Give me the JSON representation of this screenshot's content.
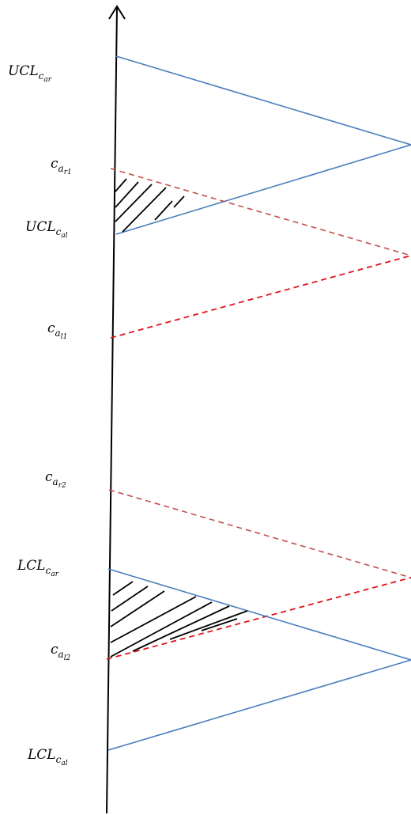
{
  "colors": {
    "axis": "#000000",
    "control_limit_line": "#4a7ebb",
    "c_line_dashed_dark": "#c0504d",
    "c_line_dashed_bright": "#e0141a",
    "hatch": "#000000"
  },
  "labels": {
    "ucl_car": {
      "main": "UCL",
      "sub": "c",
      "subsub": "ar"
    },
    "ca_r1": {
      "main": "c",
      "sub": "a",
      "subsub": "r1"
    },
    "ucl_cal": {
      "main": "UCL",
      "sub": "c",
      "subsub": "al"
    },
    "ca_l1": {
      "main": "c",
      "sub": "a",
      "subsub": "l1"
    },
    "ca_r2": {
      "main": "c",
      "sub": "a",
      "subsub": "r2"
    },
    "lcl_car": {
      "main": "LCL",
      "sub": "c",
      "subsub": "ar"
    },
    "ca_l2": {
      "main": "c",
      "sub": "a",
      "subsub": "l2"
    },
    "lcl_cal": {
      "main": "LCL",
      "sub": "c",
      "subsub": "al"
    }
  }
}
